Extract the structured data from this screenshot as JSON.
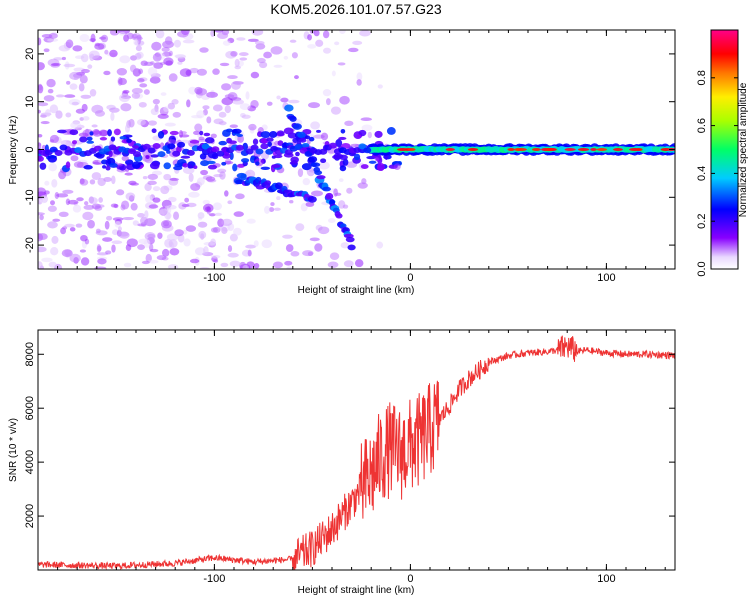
{
  "title": "KOM5.2026.101.07.57.G23",
  "chart_data": [
    {
      "type": "heatmap",
      "title": "KOM5.2026.101.07.57.G23",
      "xlabel": "Height of straight line (km)",
      "ylabel": "Frequency (Hz)",
      "xlim": [
        -190,
        135
      ],
      "ylim": [
        -25,
        25
      ],
      "xticks": [
        -100,
        0,
        100
      ],
      "xtick_labels": [
        "-100",
        "0",
        "100"
      ],
      "yticks": [
        -20,
        -10,
        0,
        10,
        20
      ],
      "ytick_labels": [
        "-20",
        "-10",
        "0",
        "10",
        "20"
      ],
      "colorbar": {
        "label": "Normalized spectral amplitude",
        "range": [
          0,
          1
        ],
        "ticks": [
          0,
          0.2,
          0.4,
          0.6,
          0.8
        ],
        "tick_labels": [
          "0.0",
          "0.2",
          "0.4",
          "0.6",
          "0.8"
        ],
        "colormap": "rainbow (white-violet-blue-cyan-green-yellow-red-magenta)"
      },
      "description_values": {
        "main_band_frequency_hz": 0,
        "main_band_start_km": -20,
        "tilted_streak_1": [
          [
            -88,
            -6
          ],
          [
            -50,
            -10
          ]
        ],
        "tilted_streak_2": [
          [
            -62,
            8
          ],
          [
            -30,
            -20
          ]
        ]
      }
    },
    {
      "type": "line",
      "xlabel": "Height of straight line (km)",
      "ylabel": "SNR (10 * v/v)",
      "xlim": [
        -190,
        135
      ],
      "ylim": [
        0,
        8900
      ],
      "xticks": [
        -100,
        0,
        100
      ],
      "xtick_labels": [
        "-100",
        "0",
        "100"
      ],
      "yticks": [
        2000,
        4000,
        6000,
        8000
      ],
      "ytick_labels": [
        "2000",
        "4000",
        "6000",
        "8000"
      ],
      "series": [
        {
          "name": "SNR",
          "color": "#ee3333",
          "x": [
            -190,
            -150,
            -120,
            -100,
            -80,
            -60,
            -50,
            -40,
            -35,
            -30,
            -25,
            -20,
            -15,
            -10,
            -5,
            0,
            5,
            10,
            15,
            20,
            25,
            30,
            40,
            50,
            60,
            70,
            75,
            80,
            85,
            90,
            100,
            110,
            120,
            135
          ],
          "y": [
            200,
            150,
            250,
            450,
            300,
            400,
            800,
            1500,
            2000,
            2500,
            3000,
            3500,
            4200,
            4500,
            4300,
            4600,
            4800,
            5200,
            5600,
            6100,
            6700,
            7100,
            7700,
            7950,
            8050,
            8100,
            8150,
            8300,
            8100,
            8150,
            8050,
            8000,
            8000,
            7950
          ]
        }
      ]
    }
  ],
  "colors": {
    "line": "#ee3333",
    "background": "#ffffff",
    "axes": "#000000"
  }
}
